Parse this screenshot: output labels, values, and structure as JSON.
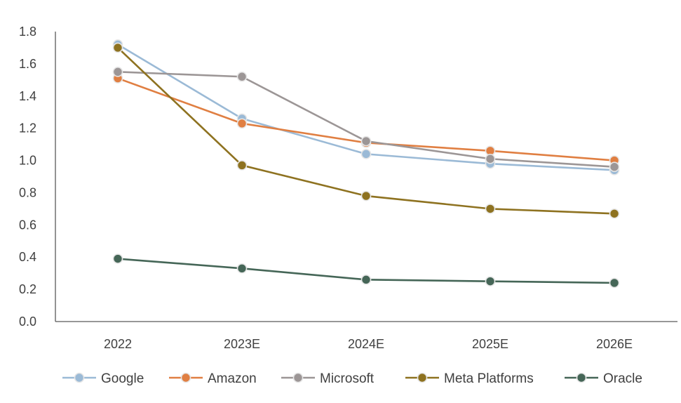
{
  "chart_data": {
    "type": "line",
    "categories": [
      "2022",
      "2023E",
      "2024E",
      "2025E",
      "2026E"
    ],
    "ylim": [
      0,
      1.8
    ],
    "yticks": [
      "0.0",
      "0.2",
      "0.4",
      "0.6",
      "0.8",
      "1.0",
      "1.2",
      "1.4",
      "1.6",
      "1.8"
    ],
    "grid": false,
    "legend_position": "bottom",
    "series": [
      {
        "name": "Google",
        "color": "#9bbad6",
        "values": [
          1.72,
          1.26,
          1.04,
          0.98,
          0.94
        ]
      },
      {
        "name": "Amazon",
        "color": "#e07f42",
        "values": [
          1.51,
          1.23,
          1.11,
          1.06,
          1.0
        ]
      },
      {
        "name": "Microsoft",
        "color": "#9c9696",
        "values": [
          1.55,
          1.52,
          1.12,
          1.01,
          0.96
        ]
      },
      {
        "name": "Meta Platforms",
        "color": "#8e7220",
        "values": [
          1.7,
          0.97,
          0.78,
          0.7,
          0.67
        ]
      },
      {
        "name": "Oracle",
        "color": "#456657",
        "values": [
          0.39,
          0.33,
          0.26,
          0.25,
          0.24
        ]
      }
    ]
  }
}
